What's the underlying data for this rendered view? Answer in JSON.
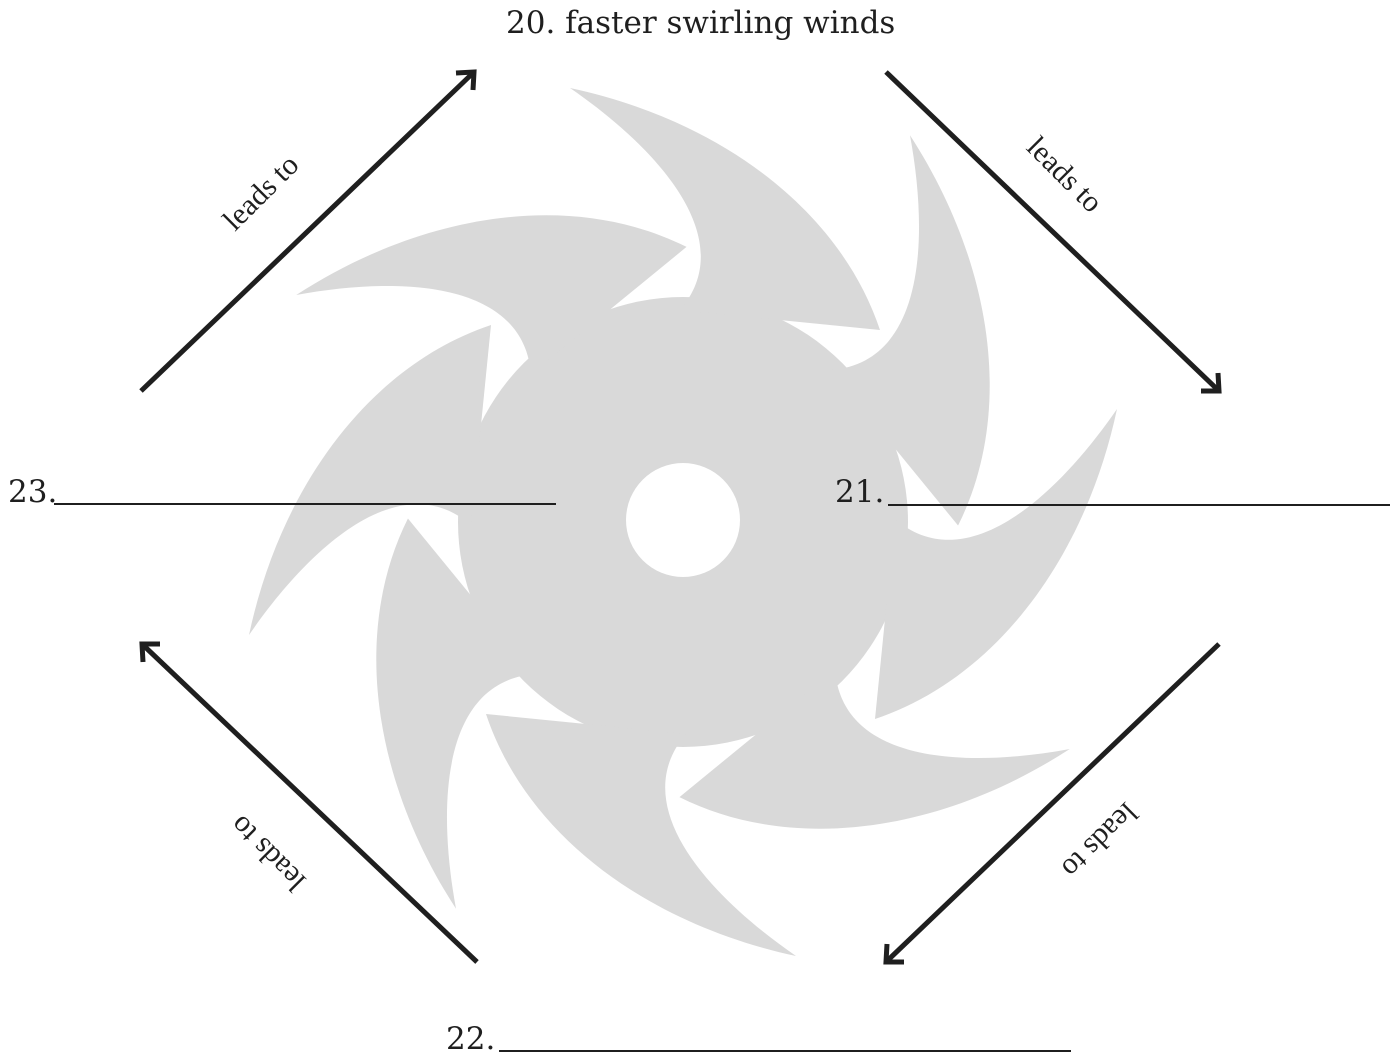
{
  "cycle": {
    "item_20": {
      "label": "20.  faster swirling winds"
    },
    "item_21": {
      "label": "21."
    },
    "item_22": {
      "label": "22."
    },
    "item_23": {
      "label": "23."
    },
    "arrow_labels": {
      "top_left": "leads to",
      "top_right": "leads to",
      "bottom_right": "leads to",
      "bottom_left": "leads to"
    }
  },
  "colors": {
    "ink": "#1f1f1f",
    "hurricane": "#d9d9d9",
    "background": "#ffffff"
  },
  "icons": {
    "center": "hurricane-icon"
  }
}
